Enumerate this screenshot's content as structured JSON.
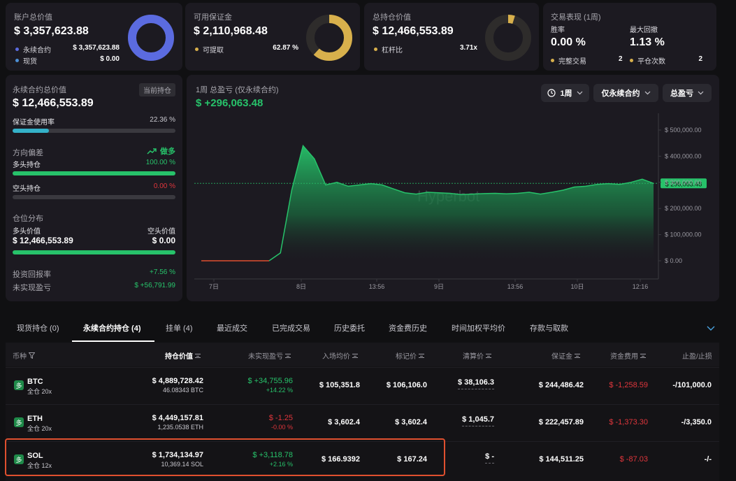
{
  "card1": {
    "title": "账户总价值",
    "value": "$ 3,357,623.88",
    "items": [
      {
        "label": "永续合约",
        "value": "$ 3,357,623.88",
        "color": "#5b6be0"
      },
      {
        "label": "现货",
        "value": "$ 0.00",
        "color": "#4d8fd6"
      }
    ],
    "donut_fraction": 1.0,
    "donut_color": "#5b6be0"
  },
  "card2": {
    "title": "可用保证金",
    "value": "$ 2,110,968.48",
    "items": [
      {
        "label": "可提取",
        "value": "62.87 %",
        "color": "#d8b04c"
      }
    ],
    "donut_fraction": 0.6287,
    "donut_color": "#d8b04c"
  },
  "card3": {
    "title": "总持仓价值",
    "value": "$ 12,466,553.89",
    "items": [
      {
        "label": "杠杆比",
        "value": "3.71x",
        "color": "#d8b04c"
      }
    ],
    "donut_fraction": 0.06,
    "donut_color": "#d8b04c"
  },
  "card4": {
    "title": "交易表现 (1周)",
    "winrate_label": "胜率",
    "winrate_value": "0.00 %",
    "drawdown_label": "最大回撤",
    "drawdown_value": "1.13 %",
    "trades_label": "完整交易",
    "trades_value": "2",
    "closes_label": "平仓次数",
    "closes_value": "2"
  },
  "left": {
    "title": "永续合约总价值",
    "tag": "当前持仓",
    "value": "$ 12,466,553.89",
    "margin_label": "保证金使用率",
    "margin_value": "22.36 %",
    "margin_fraction": 0.2236,
    "bias_label": "方向偏差",
    "bias_value": "做多",
    "long_label": "多头持仓",
    "long_value": "100.00 %",
    "long_fraction": 1.0,
    "short_label": "空头持仓",
    "short_value": "0.00 %",
    "short_fraction": 0.0,
    "dist_label": "仓位分布",
    "long_val_label": "多头价值",
    "long_val": "$ 12,466,553.89",
    "short_val_label": "空头价值",
    "short_val": "$ 0.00",
    "roi_label": "投资回报率",
    "roi_value": "+7.56 %",
    "upnl_label": "未实现盈亏",
    "upnl_value": "$ +56,791.99"
  },
  "chart_panel": {
    "title": "1周 总盈亏 (仅永续合约)",
    "value": "$ +296,063.48",
    "btn_period": "1周",
    "btn_type": "仅永续合约",
    "btn_metric": "总盈亏",
    "watermark": "Hyperbot"
  },
  "chart_data": {
    "type": "area",
    "x_ticks": [
      "7日",
      "8日",
      "13:56",
      "9日",
      "13:56",
      "10日",
      "12:16"
    ],
    "y_ticks": [
      "$ 500,000.00",
      "$ 400,000.00",
      "$ 300,000.00",
      "$ 200,000.00",
      "$ 100,000.00",
      "$ 0.00"
    ],
    "ylim": [
      0,
      500000
    ],
    "current_label": "$ 296,063.48",
    "current_value": 296063.48,
    "values": [
      0,
      0,
      0,
      0,
      0,
      0,
      0,
      30000,
      270000,
      440000,
      390000,
      290000,
      300000,
      285000,
      290000,
      295000,
      290000,
      275000,
      260000,
      255000,
      262000,
      260000,
      258000,
      253000,
      255000,
      257000,
      258000,
      256000,
      258000,
      262000,
      255000,
      262000,
      270000,
      282000,
      285000,
      292000,
      295000,
      292000,
      300000,
      312000,
      296063.48
    ],
    "baseline_color": "#e0502f",
    "area_color": "#27c26a"
  },
  "tabs": [
    {
      "label": "现货持仓 (0)"
    },
    {
      "label": "永续合约持仓 (4)"
    },
    {
      "label": "挂单 (4)"
    },
    {
      "label": "最近成交"
    },
    {
      "label": "已完成交易"
    },
    {
      "label": "历史委托"
    },
    {
      "label": "资金费历史"
    },
    {
      "label": "时间加权平均价"
    },
    {
      "label": "存款与取款"
    }
  ],
  "table": {
    "headers": [
      "币种",
      "持仓价值",
      "未实现盈亏",
      "入场均价",
      "标记价",
      "清算价",
      "保证金",
      "资金费用",
      "止盈/止损"
    ],
    "rows": [
      {
        "badge": "多",
        "coin": "BTC",
        "mode": "全仓 20x",
        "value": "$ 4,889,728.42",
        "qty": "46.08343 BTC",
        "pnl": "$ +34,755.96",
        "pnl_pct": "+14.22 %",
        "pnl_pos": true,
        "entry": "$ 105,351.8",
        "mark": "$ 106,106.0",
        "liq": "$ 38,106.3",
        "margin": "$ 244,486.42",
        "funding": "$ -1,258.59",
        "tpsl": "-/101,000.0"
      },
      {
        "badge": "多",
        "coin": "ETH",
        "mode": "全仓 20x",
        "value": "$ 4,449,157.81",
        "qty": "1,235.0538 ETH",
        "pnl": "$ -1.25",
        "pnl_pct": "-0.00 %",
        "pnl_pos": false,
        "entry": "$ 3,602.4",
        "mark": "$ 3,602.4",
        "liq": "$ 1,045.7",
        "margin": "$ 222,457.89",
        "funding": "$ -1,373.30",
        "tpsl": "-/3,350.0"
      },
      {
        "badge": "多",
        "coin": "SOL",
        "mode": "全仓 12x",
        "value": "$ 1,734,134.97",
        "qty": "10,369.14 SOL",
        "pnl": "$ +3,118.78",
        "pnl_pct": "+2.16 %",
        "pnl_pos": true,
        "entry": "$ 166.9392",
        "mark": "$ 167.24",
        "liq": "$ -",
        "margin": "$ 144,511.25",
        "funding": "$ -87.03",
        "tpsl": "-/-"
      }
    ]
  }
}
